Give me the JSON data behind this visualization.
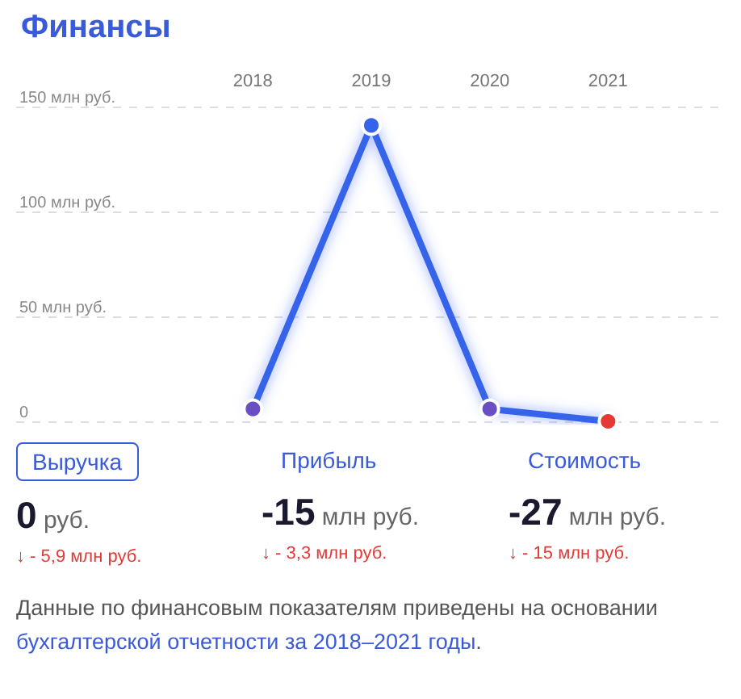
{
  "chart_data": {
    "type": "line",
    "title": "Финансы",
    "categories": [
      "2018",
      "2019",
      "2020",
      "2021"
    ],
    "series": [
      {
        "color": "#3563e9",
        "values": [
          5.9,
          141,
          5.9,
          0
        ],
        "colors": [
          "#6a4fc4",
          "#3563e9",
          "#6a4fc4",
          "#e53935"
        ]
      }
    ],
    "ylim": [
      0,
      150
    ],
    "yticks": [
      0,
      {
        "value": 50,
        "label": "50 млн руб."
      },
      {
        "value": 100,
        "label": "100 млн руб."
      },
      {
        "value": 150,
        "label": "150 млн руб."
      }
    ],
    "grid": "y",
    "marker": "circle",
    "line_style": "solid",
    "annotations": [
      "Выручка",
      "Прибыль",
      "Стоимость",
      "0",
      "руб.",
      "-15",
      "млн руб.",
      "-27",
      "млн руб.",
      "↓ - 5,9 млн руб.",
      "↓ - 3,3 млн руб.",
      "↓ - 15 млн руб.",
      "Данные по финансовым показателям приведены на основании",
      "бухгалтерской отчетности за 2018–2021 годы",
      "."
    ]
  }
}
